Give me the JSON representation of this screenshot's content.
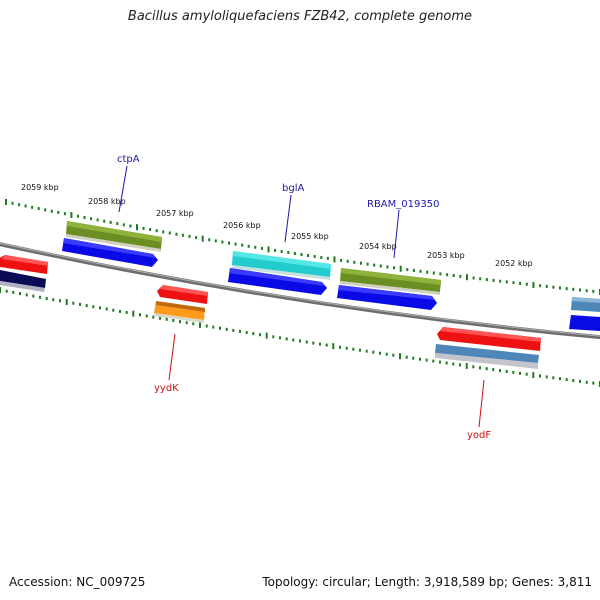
{
  "header": {
    "title": "Bacillus amyloliquefaciens FZB42, complete genome"
  },
  "footer": {
    "accession": "Accession: NC_009725",
    "topology": "Topology: circular; Length: 3,918,589 bp; Genes: 3,811"
  },
  "ticks": [
    {
      "label": "2059 kbp"
    },
    {
      "label": "2058 kbp"
    },
    {
      "label": "2057 kbp"
    },
    {
      "label": "2056 kbp"
    },
    {
      "label": "2055 kbp"
    },
    {
      "label": "2054 kbp"
    },
    {
      "label": "2053 kbp"
    },
    {
      "label": "2052 kbp"
    }
  ],
  "gene_labels": [
    {
      "name": "ctpA",
      "color": "#1a1aa6"
    },
    {
      "name": "bglA",
      "color": "#1a1aa6"
    },
    {
      "name": "RBAM_019350",
      "color": "#1a1aa6"
    },
    {
      "name": "yydK",
      "color": "#cc1111"
    },
    {
      "name": "yodF",
      "color": "#cc1111"
    }
  ],
  "colors": {
    "backbone": "#7a7a7a",
    "tick_ring": "#1f7a1f",
    "cds_blue": "#0a0ae6",
    "cds_olive": "#6b8e23",
    "cds_cyan": "#22cccc",
    "cds_red": "#ee1111",
    "cds_orange": "#ff9a1a",
    "cds_navy": "#0a0a55",
    "cds_steel": "#4f86b8"
  }
}
